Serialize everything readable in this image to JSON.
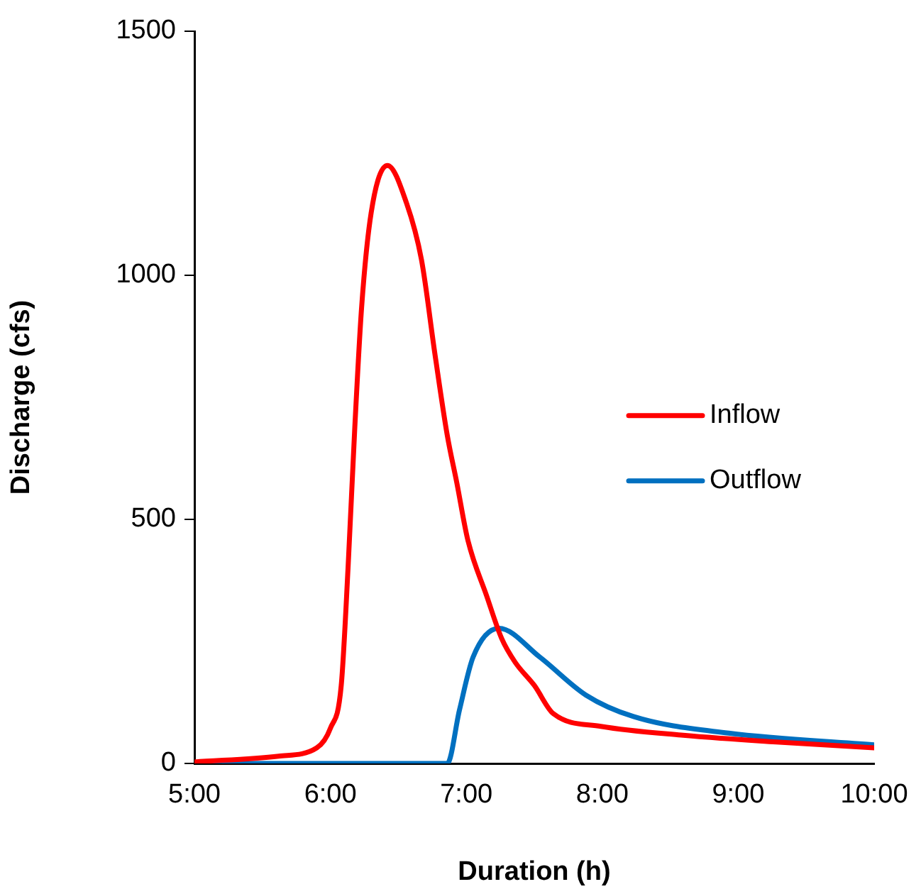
{
  "chart_data": {
    "type": "line",
    "xlabel": "Duration (h)",
    "ylabel": "Discharge (cfs)",
    "xlim": [
      5,
      10
    ],
    "xticks": [
      {
        "value": 5,
        "label": "5:00"
      },
      {
        "value": 6,
        "label": "6:00"
      },
      {
        "value": 7,
        "label": "7:00"
      },
      {
        "value": 8,
        "label": "8:00"
      },
      {
        "value": 9,
        "label": "9:00"
      },
      {
        "value": 10,
        "label": "10:00"
      }
    ],
    "ylim": [
      0,
      1500
    ],
    "yticks": [
      0,
      500,
      1000,
      1500
    ],
    "grid": false,
    "legend": "right",
    "marker": "none",
    "line_style": "solid",
    "series": [
      {
        "name": "Inflow",
        "color": "#ff0000",
        "x": [
          5,
          5.62,
          5.9,
          6.0,
          6.08,
          6.13,
          6.18,
          6.23,
          6.3,
          6.42,
          6.56,
          6.67,
          6.77,
          6.86,
          6.93,
          7.01,
          7.15,
          7.26,
          7.36,
          7.5,
          7.64,
          7.99,
          8.58,
          9.28,
          10
        ],
        "values": [
          3,
          15,
          32,
          72,
          160,
          400,
          690,
          935,
          1128,
          1225,
          1148,
          1032,
          837,
          672,
          575,
          459,
          343,
          256,
          207,
          160,
          102,
          76,
          58,
          44,
          32
        ]
      },
      {
        "name": "Outflow",
        "color": "#0070c0",
        "x": [
          5,
          6.86,
          6.95,
          7.05,
          7.24,
          7.54,
          7.88,
          8.23,
          8.93,
          10
        ],
        "values": [
          0,
          0,
          110,
          218,
          277,
          218,
          140,
          96,
          62,
          38
        ]
      }
    ]
  }
}
